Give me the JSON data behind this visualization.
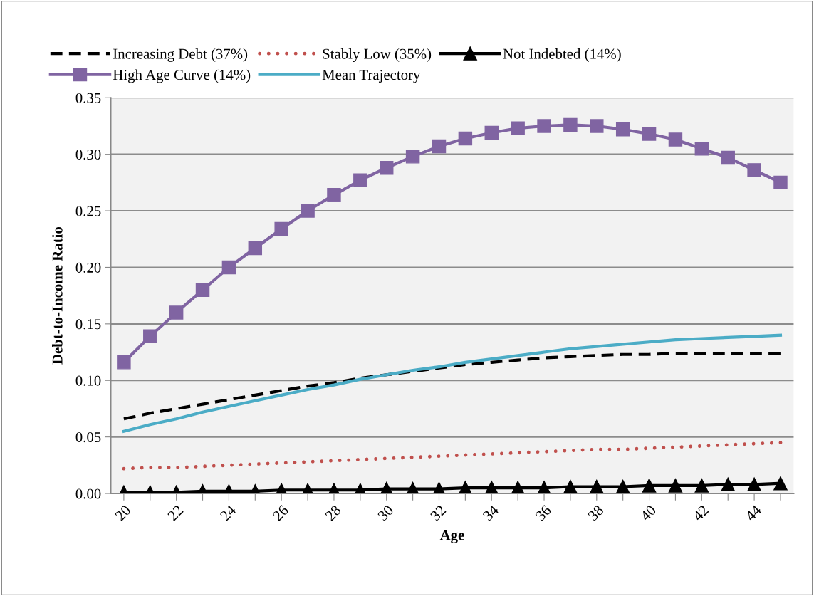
{
  "chart_data": {
    "type": "line",
    "xlabel": "Age",
    "ylabel": "Debt-to-Income Ratio",
    "categories": [
      "20",
      null,
      "22",
      null,
      "24",
      null,
      "26",
      null,
      "28",
      null,
      "30",
      null,
      "32",
      null,
      "34",
      null,
      "36",
      null,
      "38",
      null,
      "40",
      null,
      "42",
      null,
      "44",
      null
    ],
    "series": [
      {
        "name": "Increasing Debt (37%)",
        "color": "#000000",
        "line_style": "dashed",
        "marker": "none",
        "values": [
          0.066,
          0.071,
          0.075,
          0.079,
          0.083,
          0.087,
          0.091,
          0.095,
          0.098,
          0.102,
          0.105,
          0.108,
          0.111,
          0.114,
          0.116,
          0.118,
          0.12,
          0.121,
          0.122,
          0.123,
          0.123,
          0.124,
          0.124,
          0.124,
          0.124,
          0.124
        ]
      },
      {
        "name": "Stably Low (35%)",
        "color": "#c0504d",
        "line_style": "dotted",
        "marker": "none",
        "values": [
          0.022,
          0.023,
          0.023,
          0.024,
          0.025,
          0.026,
          0.027,
          0.028,
          0.029,
          0.03,
          0.031,
          0.032,
          0.033,
          0.034,
          0.035,
          0.036,
          0.037,
          0.038,
          0.039,
          0.039,
          0.04,
          0.041,
          0.042,
          0.043,
          0.044,
          0.045
        ]
      },
      {
        "name": "Not Indebted (14%)",
        "color": "#000000",
        "line_style": "solid",
        "marker": "triangle",
        "values": [
          0.001,
          0.001,
          0.001,
          0.002,
          0.002,
          0.002,
          0.003,
          0.003,
          0.003,
          0.003,
          0.004,
          0.004,
          0.004,
          0.005,
          0.005,
          0.005,
          0.005,
          0.006,
          0.006,
          0.006,
          0.007,
          0.007,
          0.007,
          0.008,
          0.008,
          0.009
        ]
      },
      {
        "name": "High Age Curve (14%)",
        "color": "#8064a2",
        "line_style": "solid",
        "marker": "square",
        "values": [
          0.116,
          0.139,
          0.16,
          0.18,
          0.2,
          0.217,
          0.234,
          0.25,
          0.264,
          0.277,
          0.288,
          0.298,
          0.307,
          0.314,
          0.319,
          0.323,
          0.325,
          0.326,
          0.325,
          0.322,
          0.318,
          0.313,
          0.305,
          0.297,
          0.286,
          0.275
        ]
      },
      {
        "name": "Mean Trajectory",
        "color": "#4bacc6",
        "line_style": "solid",
        "marker": "none",
        "values": [
          0.055,
          0.061,
          0.066,
          0.072,
          0.077,
          0.082,
          0.087,
          0.092,
          0.096,
          0.101,
          0.105,
          0.109,
          0.112,
          0.116,
          0.119,
          0.122,
          0.125,
          0.128,
          0.13,
          0.132,
          0.134,
          0.136,
          0.137,
          0.138,
          0.139,
          0.14
        ]
      }
    ],
    "ylim": [
      0,
      0.35
    ],
    "yticks": [
      {
        "value": 0,
        "label": "0.00"
      },
      {
        "value": 0.05,
        "label": "0.05"
      },
      {
        "value": 0.1,
        "label": "0.10"
      },
      {
        "value": 0.15,
        "label": "0.15"
      },
      {
        "value": 0.2,
        "label": "0.20"
      },
      {
        "value": 0.25,
        "label": "0.25"
      },
      {
        "value": 0.3,
        "label": "0.30"
      },
      {
        "value": 0.35,
        "label": "0.35"
      }
    ],
    "grid": "y",
    "legend": "top"
  }
}
